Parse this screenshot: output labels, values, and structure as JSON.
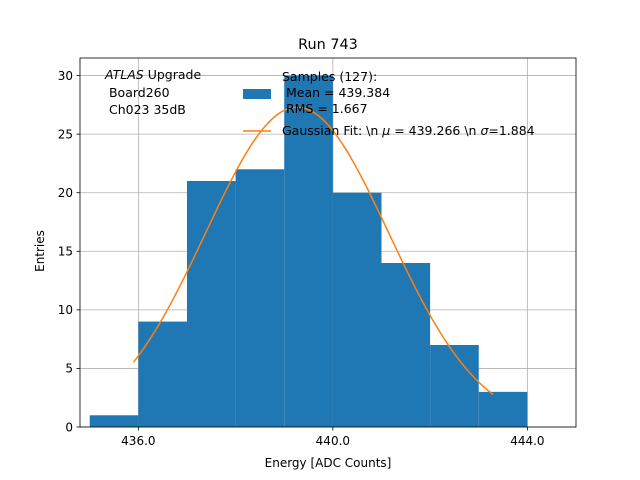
{
  "chart_data": {
    "type": "histogram",
    "title": "Run 743",
    "xlabel": "Energy [ADC Counts]",
    "ylabel": "Entries",
    "xlim": [
      434.8,
      445.0
    ],
    "ylim": [
      0,
      31.5
    ],
    "xticks": [
      436.0,
      440.0,
      444.0
    ],
    "xtick_labels": [
      "436.0",
      "440.0",
      "444.0"
    ],
    "yticks": [
      0,
      5,
      10,
      15,
      20,
      25,
      30
    ],
    "ytick_labels": [
      "0",
      "5",
      "10",
      "15",
      "20",
      "25",
      "30"
    ],
    "grid": true,
    "bin_edges": [
      435,
      436,
      437,
      438,
      439,
      440,
      441,
      442,
      443,
      444
    ],
    "counts": [
      1,
      9,
      21,
      22,
      30,
      20,
      14,
      7,
      3
    ],
    "bar_color": "#1f77b4",
    "fit": {
      "mu": 439.266,
      "sigma": 1.884,
      "amplitude": 27.3,
      "x_range": [
        435.9,
        443.3
      ],
      "color": "#ff7f0e"
    },
    "annotation": {
      "italic_part": "ATLAS",
      "line1_rest": " Upgrade",
      "line2": " Board260",
      "line3": " Ch023 35dB"
    },
    "legend": {
      "placement": "top-right",
      "samples_line1": "Samples (127):",
      "samples_line2": " Mean = 439.384",
      "samples_line3": " RMS = 1.667",
      "fit_prefix": "Gaussian Fit: \\n ",
      "fit_mu_symbol": "μ",
      "fit_mid": " = 439.266 \\n ",
      "fit_sigma_symbol": "σ",
      "fit_suffix": "=1.884"
    }
  }
}
